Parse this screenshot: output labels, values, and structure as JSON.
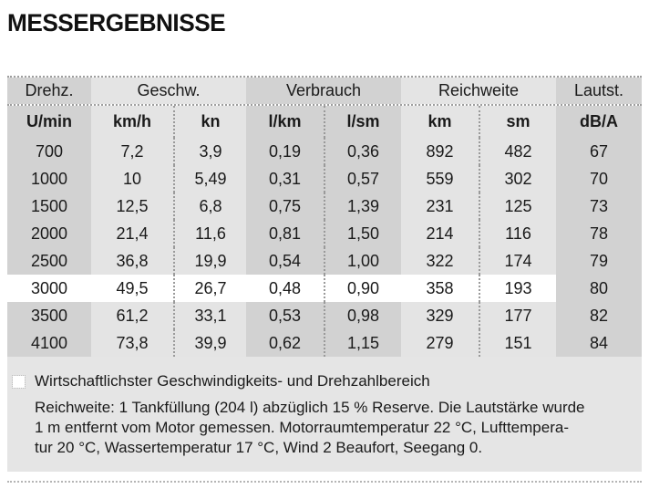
{
  "title": "MESSERGEBNISSE",
  "table": {
    "group_headers": [
      {
        "label": "Drehz.",
        "span": 1,
        "shade": "dark"
      },
      {
        "label": "Geschw.",
        "span": 2,
        "shade": "light"
      },
      {
        "label": "Verbrauch",
        "span": 2,
        "shade": "dark"
      },
      {
        "label": "Reichweite",
        "span": 2,
        "shade": "light"
      },
      {
        "label": "Lautst.",
        "span": 1,
        "shade": "dark"
      }
    ],
    "unit_headers": [
      "U/min",
      "km/h",
      "kn",
      "l/km",
      "l/sm",
      "km",
      "sm",
      "dB/A"
    ],
    "rows": [
      {
        "highlight": false,
        "values": [
          "700",
          "7,2",
          "3,9",
          "0,19",
          "0,36",
          "892",
          "482",
          "67"
        ]
      },
      {
        "highlight": false,
        "values": [
          "1000",
          "10",
          "5,49",
          "0,31",
          "0,57",
          "559",
          "302",
          "70"
        ]
      },
      {
        "highlight": false,
        "values": [
          "1500",
          "12,5",
          "6,8",
          "0,75",
          "1,39",
          "231",
          "125",
          "73"
        ]
      },
      {
        "highlight": false,
        "values": [
          "2000",
          "21,4",
          "11,6",
          "0,81",
          "1,50",
          "214",
          "116",
          "78"
        ]
      },
      {
        "highlight": false,
        "values": [
          "2500",
          "36,8",
          "19,9",
          "0,54",
          "1,00",
          "322",
          "174",
          "79"
        ]
      },
      {
        "highlight": true,
        "values": [
          "3000",
          "49,5",
          "26,7",
          "0,48",
          "0,90",
          "358",
          "193",
          "80"
        ]
      },
      {
        "highlight": false,
        "values": [
          "3500",
          "61,2",
          "33,1",
          "0,53",
          "0,98",
          "329",
          "177",
          "82"
        ]
      },
      {
        "highlight": false,
        "values": [
          "4100",
          "73,8",
          "39,9",
          "0,62",
          "1,15",
          "279",
          "151",
          "84"
        ]
      }
    ]
  },
  "footnote": {
    "legend": "Wirtschaftlichster Geschwindigkeits- und Drehzahlbereich",
    "lines": [
      "Reichweite: 1 Tankfüllung (204 l) abzüglich 15 % Reserve. Die Lautstärke wurde",
      "1 m entfernt vom Motor gemessen. Motorraumtemperatur 22 °C, Lufttempera-",
      "tur 20 °C, Wassertemperatur 17 °C, Wind 2 Beaufort, Seegang 0."
    ]
  },
  "colors": {
    "dark_cell": "#d2d2d2",
    "light_cell": "#e4e4e4",
    "highlight_row": "#ffffff",
    "footer_bg": "#e5e5e5",
    "text": "#1a1a1a",
    "rule": "#9e9e9e"
  }
}
